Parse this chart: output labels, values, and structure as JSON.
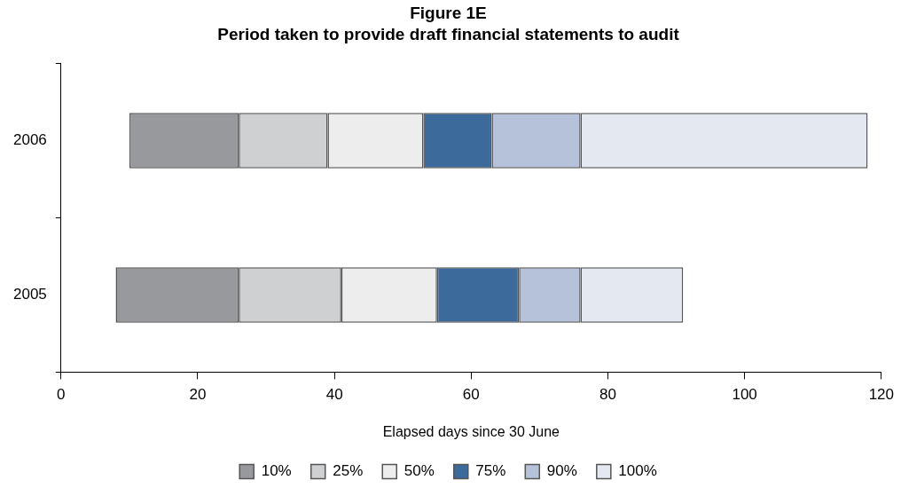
{
  "chart_data": {
    "type": "bar",
    "orientation": "horizontal",
    "stacked": true,
    "title": "Figure 1E",
    "subtitle": "Period taken to provide draft financial statements to audit",
    "xlabel": "Elapsed days since 30 June",
    "categories": [
      "2006",
      "2005"
    ],
    "series": [
      {
        "name": "10%",
        "color": "#98999d",
        "values": [
          16,
          18
        ],
        "base": [
          10,
          8
        ]
      },
      {
        "name": "25%",
        "color": "#cfd0d2",
        "values": [
          13,
          15
        ]
      },
      {
        "name": "50%",
        "color": "#ededed",
        "values": [
          14,
          14
        ]
      },
      {
        "name": "75%",
        "color": "#3b6a9b",
        "values": [
          10,
          12
        ]
      },
      {
        "name": "90%",
        "color": "#b5c2da",
        "values": [
          13,
          9
        ]
      },
      {
        "name": "100%",
        "color": "#e3e8f1",
        "values": [
          42,
          15
        ]
      }
    ],
    "xlim": [
      0,
      120
    ],
    "xticks": [
      0,
      20,
      40,
      60,
      80,
      100,
      120
    ],
    "grid": false,
    "legend": "bottom"
  }
}
